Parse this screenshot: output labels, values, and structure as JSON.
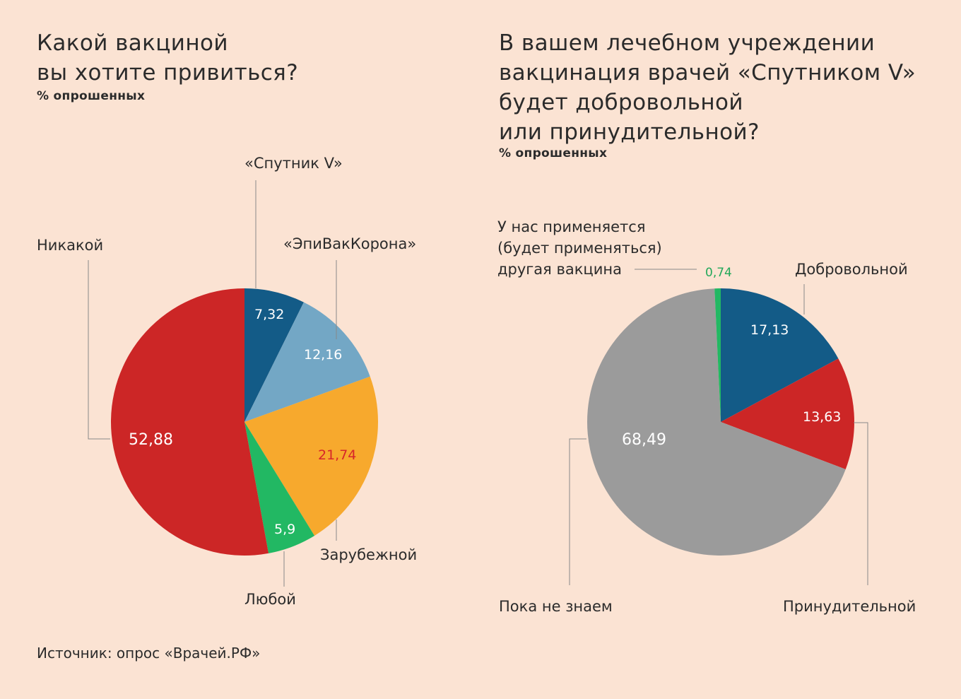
{
  "chart_data": [
    {
      "type": "pie",
      "title_lines": [
        "Какой вакциной",
        "вы хотите привиться?"
      ],
      "subtitle": "% опрошенных",
      "slices": [
        {
          "label": "«Спутник V»",
          "value": 7.32,
          "value_text": "7,32",
          "color": "#135b87",
          "value_color": "#ffffff"
        },
        {
          "label": "«ЭпиВакКорона»",
          "value": 12.16,
          "value_text": "12,16",
          "color": "#73a7c5",
          "value_color": "#ffffff"
        },
        {
          "label": "Зарубежной",
          "value": 21.74,
          "value_text": "21,74",
          "color": "#f7a92d",
          "value_color": "#d7262a"
        },
        {
          "label": "Любой",
          "value": 5.9,
          "value_text": "5,9",
          "color": "#22b863",
          "value_color": "#ffffff"
        },
        {
          "label": "Никакой",
          "value": 52.88,
          "value_text": "52,88",
          "color": "#cc2626",
          "value_color": "#ffffff"
        }
      ]
    },
    {
      "type": "pie",
      "title_lines": [
        "В вашем лечебном учреждении",
        "вакцинация врачей «Спутником V»",
        "будет добровольной",
        "или принудительной?"
      ],
      "subtitle": "% опрошенных",
      "slices": [
        {
          "label": "Добровольной",
          "value": 17.13,
          "value_text": "17,13",
          "color": "#135b87",
          "value_color": "#ffffff"
        },
        {
          "label": "Принудительной",
          "value": 13.63,
          "value_text": "13,63",
          "color": "#cc2626",
          "value_color": "#ffffff"
        },
        {
          "label": "Пока не знаем",
          "value": 68.49,
          "value_text": "68,49",
          "color": "#9b9b9b",
          "value_color": "#ffffff"
        },
        {
          "label_lines": [
            "У нас применяется",
            "(будет применяться)",
            "другая вакцина"
          ],
          "value": 0.74,
          "value_text": "0,74",
          "color": "#22b863",
          "value_color": "#22a85a"
        }
      ]
    }
  ],
  "source": "Источник: опрос «Врачей.РФ»"
}
